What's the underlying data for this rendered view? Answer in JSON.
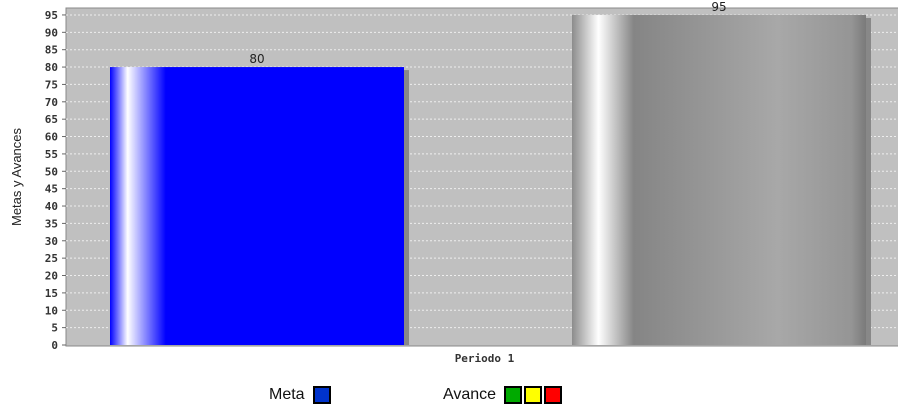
{
  "chart_data": {
    "type": "bar",
    "categories": [
      "Periodo 1"
    ],
    "series": [
      {
        "name": "Meta",
        "values": [
          80
        ],
        "color": "#0000ff"
      },
      {
        "name": "Avance",
        "values": [
          95
        ],
        "color": "#8c8c8c"
      }
    ],
    "ylabel": "Metas y Avances",
    "xlabel": "",
    "ylim": [
      0,
      97
    ],
    "yticks": [
      0,
      5,
      10,
      15,
      20,
      25,
      30,
      35,
      40,
      45,
      50,
      55,
      60,
      65,
      70,
      75,
      80,
      85,
      90,
      95
    ],
    "grid": true,
    "plot_background": "#c0c0c0",
    "legend": {
      "position": "bottom",
      "items": [
        {
          "label": "Meta",
          "swatches": [
            "#0033cc"
          ]
        },
        {
          "label": "Avance",
          "swatches": [
            "#00aa00",
            "#ffff00",
            "#ff0000"
          ]
        }
      ]
    }
  }
}
